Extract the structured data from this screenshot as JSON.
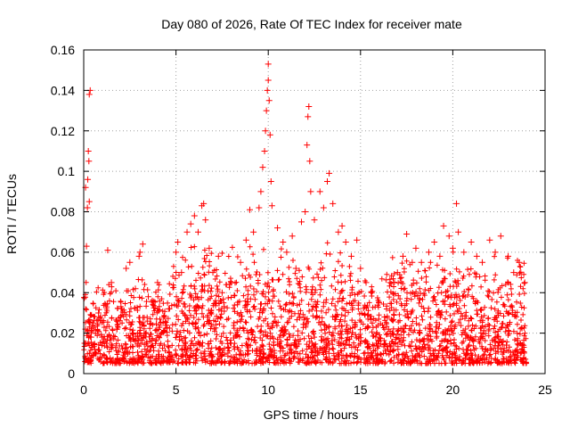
{
  "chart_data": {
    "type": "scatter",
    "title": "Day 080 of 2026, Rate Of TEC Index for receiver mate",
    "xlabel": "GPS time / hours",
    "ylabel": "ROTI / TECUs",
    "xlim": [
      0,
      25
    ],
    "ylim": [
      0,
      0.16
    ],
    "xticks": [
      0,
      5,
      10,
      15,
      20,
      25
    ],
    "xtick_labels": [
      "0",
      "5",
      "10",
      "15",
      "20",
      "25"
    ],
    "yticks": [
      0,
      0.02,
      0.04,
      0.06,
      0.08,
      0.1,
      0.12,
      0.14,
      0.16
    ],
    "ytick_labels": [
      "0",
      "0.02",
      "0.04",
      "0.06",
      "0.08",
      "0.1",
      "0.12",
      "0.14",
      "0.16"
    ],
    "grid": true,
    "marker": "plus",
    "color": "#ff0000",
    "series": [
      {
        "name": "ROTI",
        "points": [
          [
            0.05,
            0.015
          ],
          [
            0.1,
            0.022
          ],
          [
            0.1,
            0.092
          ],
          [
            0.15,
            0.063
          ],
          [
            0.2,
            0.02
          ],
          [
            0.2,
            0.082
          ],
          [
            0.22,
            0.096
          ],
          [
            0.25,
            0.11
          ],
          [
            0.28,
            0.105
          ],
          [
            0.3,
            0.085
          ],
          [
            0.3,
            0.138
          ],
          [
            0.35,
            0.14
          ],
          [
            0.4,
            0.018
          ],
          [
            0.5,
            0.025
          ],
          [
            0.6,
            0.012
          ],
          [
            0.8,
            0.03
          ],
          [
            1.0,
            0.018
          ],
          [
            1.2,
            0.034
          ],
          [
            1.3,
            0.061
          ],
          [
            1.5,
            0.045
          ],
          [
            1.8,
            0.022
          ],
          [
            2.0,
            0.028
          ],
          [
            2.3,
            0.052
          ],
          [
            2.5,
            0.055
          ],
          [
            2.8,
            0.042
          ],
          [
            3.0,
            0.058
          ],
          [
            3.05,
            0.06
          ],
          [
            3.2,
            0.064
          ],
          [
            3.5,
            0.038
          ],
          [
            4.0,
            0.045
          ],
          [
            4.3,
            0.025
          ],
          [
            4.6,
            0.032
          ],
          [
            5.0,
            0.06
          ],
          [
            5.1,
            0.065
          ],
          [
            5.3,
            0.05
          ],
          [
            5.6,
            0.07
          ],
          [
            5.8,
            0.074
          ],
          [
            6.0,
            0.078
          ],
          [
            6.2,
            0.07
          ],
          [
            6.4,
            0.083
          ],
          [
            6.5,
            0.084
          ],
          [
            6.6,
            0.076
          ],
          [
            6.8,
            0.062
          ],
          [
            7.0,
            0.05
          ],
          [
            7.3,
            0.058
          ],
          [
            7.5,
            0.04
          ],
          [
            8.0,
            0.045
          ],
          [
            8.5,
            0.055
          ],
          [
            8.8,
            0.066
          ],
          [
            9.0,
            0.081
          ],
          [
            9.2,
            0.07
          ],
          [
            9.5,
            0.082
          ],
          [
            9.6,
            0.09
          ],
          [
            9.7,
            0.102
          ],
          [
            9.8,
            0.11
          ],
          [
            9.85,
            0.12
          ],
          [
            9.9,
            0.13
          ],
          [
            9.95,
            0.14
          ],
          [
            10.0,
            0.153
          ],
          [
            10.0,
            0.145
          ],
          [
            10.05,
            0.135
          ],
          [
            10.1,
            0.118
          ],
          [
            10.15,
            0.095
          ],
          [
            10.2,
            0.083
          ],
          [
            10.5,
            0.072
          ],
          [
            10.8,
            0.065
          ],
          [
            11.0,
            0.06
          ],
          [
            11.3,
            0.068
          ],
          [
            11.5,
            0.052
          ],
          [
            11.8,
            0.075
          ],
          [
            12.0,
            0.08
          ],
          [
            12.1,
            0.113
          ],
          [
            12.15,
            0.127
          ],
          [
            12.2,
            0.132
          ],
          [
            12.25,
            0.105
          ],
          [
            12.3,
            0.09
          ],
          [
            12.5,
            0.076
          ],
          [
            12.8,
            0.09
          ],
          [
            13.0,
            0.082
          ],
          [
            13.2,
            0.095
          ],
          [
            13.3,
            0.099
          ],
          [
            13.5,
            0.084
          ],
          [
            13.8,
            0.07
          ],
          [
            14.0,
            0.073
          ],
          [
            14.2,
            0.065
          ],
          [
            14.5,
            0.058
          ],
          [
            14.8,
            0.066
          ],
          [
            15.0,
            0.052
          ],
          [
            15.3,
            0.045
          ],
          [
            15.6,
            0.04
          ],
          [
            16.0,
            0.035
          ],
          [
            16.3,
            0.028
          ],
          [
            16.6,
            0.045
          ],
          [
            17.0,
            0.05
          ],
          [
            17.3,
            0.058
          ],
          [
            17.5,
            0.069
          ],
          [
            17.8,
            0.055
          ],
          [
            18.0,
            0.062
          ],
          [
            18.3,
            0.055
          ],
          [
            18.7,
            0.06
          ],
          [
            19.0,
            0.065
          ],
          [
            19.3,
            0.058
          ],
          [
            19.5,
            0.073
          ],
          [
            19.8,
            0.068
          ],
          [
            20.0,
            0.062
          ],
          [
            20.2,
            0.084
          ],
          [
            20.3,
            0.07
          ],
          [
            20.6,
            0.06
          ],
          [
            21.0,
            0.065
          ],
          [
            21.3,
            0.058
          ],
          [
            21.6,
            0.055
          ],
          [
            22.0,
            0.066
          ],
          [
            22.3,
            0.06
          ],
          [
            22.6,
            0.068
          ],
          [
            23.0,
            0.058
          ],
          [
            23.3,
            0.05
          ],
          [
            23.6,
            0.055
          ],
          [
            23.9,
            0.045
          ]
        ],
        "band": {
          "x_range": [
            0,
            24
          ],
          "typical_range": [
            0.005,
            0.04
          ],
          "description_visible": false
        }
      }
    ]
  }
}
